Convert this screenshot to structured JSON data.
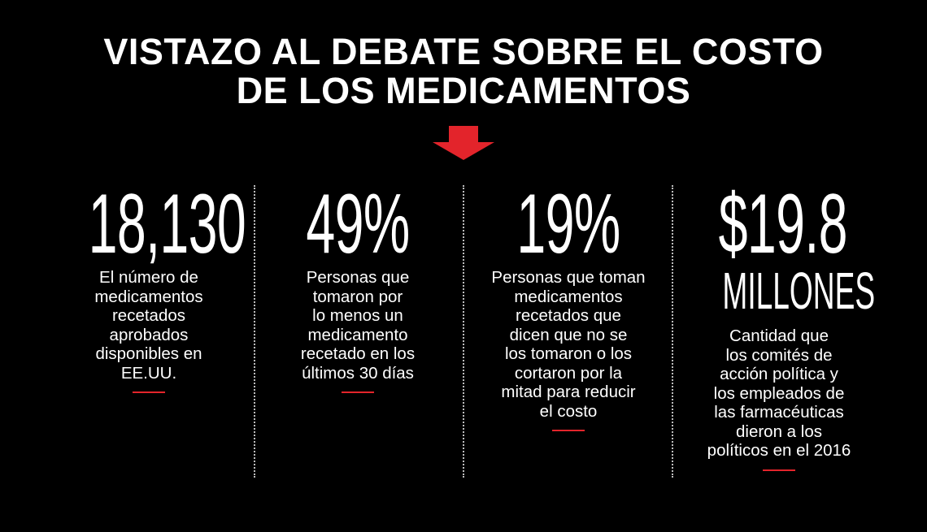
{
  "title": {
    "line1": "VISTAZO AL DEBATE SOBRE EL COSTO",
    "line2": "DE LOS MEDICAMENTOS"
  },
  "colors": {
    "background": "#000000",
    "text": "#ffffff",
    "accent": "#e3242b",
    "divider": "#bdbdbd"
  },
  "stats": [
    {
      "value": "18,130",
      "description": [
        "El número de",
        "medicamentos",
        "recetados",
        "aprobados",
        "disponibles en",
        "EE.UU."
      ]
    },
    {
      "value": "49%",
      "description": [
        "Personas que",
        "tomaron por",
        "lo menos un",
        "medicamento",
        "recetado en los",
        "últimos 30 días"
      ]
    },
    {
      "value": "19%",
      "description": [
        "Personas que toman",
        "medicamentos",
        "recetados que",
        "dicen que no se",
        "los tomaron o los",
        "cortaron por la",
        "mitad para reducir",
        "el costo"
      ]
    },
    {
      "value": "$19.8",
      "unit": "MILLONES",
      "description": [
        "Cantidad que",
        "los comités de",
        "acción política y",
        "los empleados de",
        "las farmacéuticas",
        "dieron a los",
        "políticos en el 2016"
      ]
    }
  ]
}
